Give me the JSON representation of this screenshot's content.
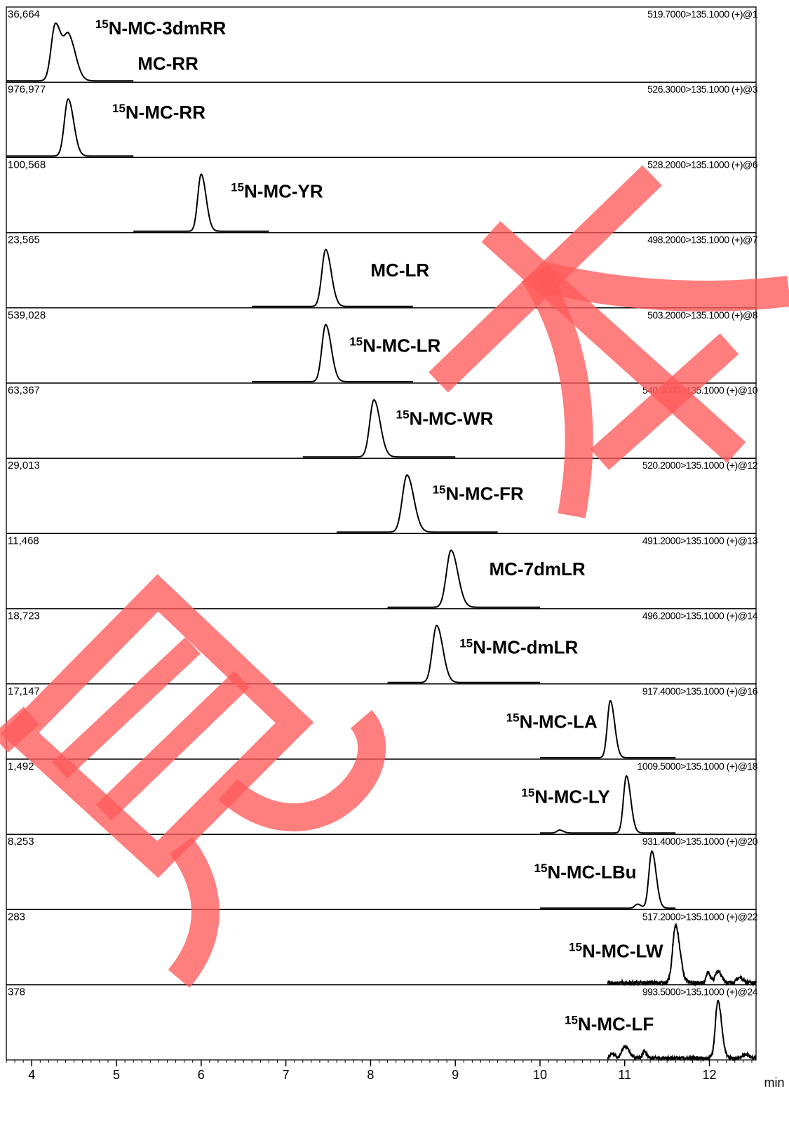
{
  "chart_data": {
    "type": "line",
    "x_unit": "min",
    "xlim": [
      3.7,
      12.55
    ],
    "x_ticks": [
      "4",
      "5",
      "6",
      "7",
      "8",
      "9",
      "10",
      "11",
      "12"
    ],
    "panels": [
      {
        "max_intensity": "36,664",
        "transition": "519.7000>135.1000 (+)@1",
        "label_prefix": "15",
        "label_text": "N-MC-3dmRR",
        "label2": "MC-RR",
        "trace_range": [
          3.7,
          5.2
        ],
        "peaks": [
          {
            "rt": 4.28,
            "height": 1.0,
            "width": 0.05
          },
          {
            "rt": 4.44,
            "height": 0.74,
            "width": 0.055
          }
        ]
      },
      {
        "max_intensity": "976,977",
        "transition": "526.3000>135.1000 (+)@3",
        "label_prefix": "15",
        "label_text": "N-MC-RR",
        "trace_range": [
          3.7,
          5.2
        ],
        "peaks": [
          {
            "rt": 4.43,
            "height": 1.0,
            "width": 0.045
          }
        ]
      },
      {
        "max_intensity": "100,568",
        "transition": "528.2000>135.1000 (+)@6",
        "label_prefix": "15",
        "label_text": "N-MC-YR",
        "trace_range": [
          5.2,
          6.8
        ],
        "peaks": [
          {
            "rt": 6.0,
            "height": 1.0,
            "width": 0.04
          }
        ]
      },
      {
        "max_intensity": "23,565",
        "transition": "498.2000>135.1000 (+)@7",
        "label_prefix": "",
        "label_text": "MC-LR",
        "trace_range": [
          6.6,
          8.5
        ],
        "peaks": [
          {
            "rt": 7.47,
            "height": 1.0,
            "width": 0.045
          }
        ]
      },
      {
        "max_intensity": "539,028",
        "transition": "503.2000>135.1000 (+)@8",
        "label_prefix": "15",
        "label_text": "N-MC-LR",
        "trace_range": [
          6.6,
          8.5
        ],
        "peaks": [
          {
            "rt": 7.47,
            "height": 1.0,
            "width": 0.045
          }
        ]
      },
      {
        "max_intensity": "63,367",
        "transition": "540.3000>135.1000 (+)@10",
        "label_prefix": "15",
        "label_text": "N-MC-WR",
        "trace_range": [
          7.2,
          9.0
        ],
        "peaks": [
          {
            "rt": 8.04,
            "height": 1.0,
            "width": 0.05
          }
        ]
      },
      {
        "max_intensity": "29,013",
        "transition": "520.2000>135.1000 (+)@12",
        "label_prefix": "15",
        "label_text": "N-MC-FR",
        "trace_range": [
          7.6,
          9.5
        ],
        "peaks": [
          {
            "rt": 8.43,
            "height": 1.0,
            "width": 0.055
          }
        ]
      },
      {
        "max_intensity": "11,468",
        "transition": "491.2000>135.1000 (+)@13",
        "label_prefix": "",
        "label_text": "MC-7dmLR",
        "trace_range": [
          8.2,
          10.0
        ],
        "peaks": [
          {
            "rt": 8.95,
            "height": 1.0,
            "width": 0.055
          }
        ]
      },
      {
        "max_intensity": "18,723",
        "transition": "496.2000>135.1000 (+)@14",
        "label_prefix": "15",
        "label_text": "N-MC-dmLR",
        "trace_range": [
          8.2,
          10.0
        ],
        "peaks": [
          {
            "rt": 8.78,
            "height": 1.0,
            "width": 0.05
          }
        ]
      },
      {
        "max_intensity": "17,147",
        "transition": "917.4000>135.1000 (+)@16",
        "label_prefix": "15",
        "label_text": "N-MC-LA",
        "trace_range": [
          10.0,
          11.6
        ],
        "peaks": [
          {
            "rt": 10.83,
            "height": 1.0,
            "width": 0.035
          }
        ]
      },
      {
        "max_intensity": "1,492",
        "transition": "1009.5000>135.1000 (+)@18",
        "label_prefix": "15",
        "label_text": "N-MC-LY",
        "trace_range": [
          10.0,
          11.6
        ],
        "peaks": [
          {
            "rt": 10.23,
            "height": 0.05,
            "width": 0.03
          },
          {
            "rt": 11.02,
            "height": 1.0,
            "width": 0.035
          }
        ]
      },
      {
        "max_intensity": "8,253",
        "transition": "931.4000>135.1000 (+)@20",
        "label_prefix": "15",
        "label_text": "N-MC-LBu",
        "trace_range": [
          10.0,
          11.6
        ],
        "peaks": [
          {
            "rt": 11.15,
            "height": 0.07,
            "width": 0.03
          },
          {
            "rt": 11.32,
            "height": 1.0,
            "width": 0.035
          }
        ]
      },
      {
        "max_intensity": "283",
        "transition": "517.2000>135.1000 (+)@22",
        "label_prefix": "15",
        "label_text": "N-MC-LW",
        "trace_range": [
          10.8,
          12.55
        ],
        "noise": 0.06,
        "peaks": [
          {
            "rt": 11.6,
            "height": 1.0,
            "width": 0.035
          },
          {
            "rt": 11.98,
            "height": 0.18,
            "width": 0.02
          },
          {
            "rt": 12.1,
            "height": 0.2,
            "width": 0.03
          },
          {
            "rt": 12.35,
            "height": 0.1,
            "width": 0.03
          }
        ]
      },
      {
        "max_intensity": "378",
        "transition": "993.5000>135.1000 (+)@24",
        "label_prefix": "15",
        "label_text": "N-MC-LF",
        "trace_range": [
          10.8,
          12.55
        ],
        "noise": 0.05,
        "peaks": [
          {
            "rt": 10.85,
            "height": 0.09,
            "width": 0.02
          },
          {
            "rt": 11.0,
            "height": 0.2,
            "width": 0.035
          },
          {
            "rt": 11.23,
            "height": 0.12,
            "width": 0.02
          },
          {
            "rt": 12.1,
            "height": 1.0,
            "width": 0.03
          },
          {
            "rt": 12.42,
            "height": 0.07,
            "width": 0.03
          }
        ]
      }
    ]
  },
  "watermark": {
    "color": "#ff5a5a",
    "text": [
      "見",
      "本"
    ]
  }
}
